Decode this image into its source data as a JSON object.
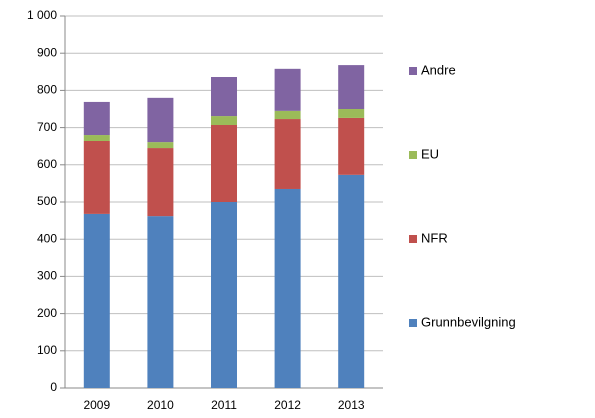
{
  "chart_data": {
    "type": "stacked_bar",
    "categories": [
      "2009",
      "2010",
      "2011",
      "2012",
      "2013"
    ],
    "series": [
      {
        "name": "Grunnbevilgning",
        "color": "#4f81bd",
        "values": [
          468,
          462,
          500,
          535,
          573
        ]
      },
      {
        "name": "NFR",
        "color": "#c0504d",
        "values": [
          196,
          183,
          207,
          188,
          153
        ]
      },
      {
        "name": "EU",
        "color": "#9bbb59",
        "values": [
          16,
          16,
          24,
          22,
          24
        ]
      },
      {
        "name": "Andre",
        "color": "#8064a2",
        "values": [
          89,
          119,
          105,
          113,
          118
        ]
      }
    ],
    "ylim": [
      0,
      1000
    ],
    "yticks": [
      0,
      100,
      200,
      300,
      400,
      500,
      600,
      700,
      800,
      900,
      {
        "value": 1000,
        "label": "1 000"
      }
    ],
    "grid": true,
    "legend": "right"
  }
}
